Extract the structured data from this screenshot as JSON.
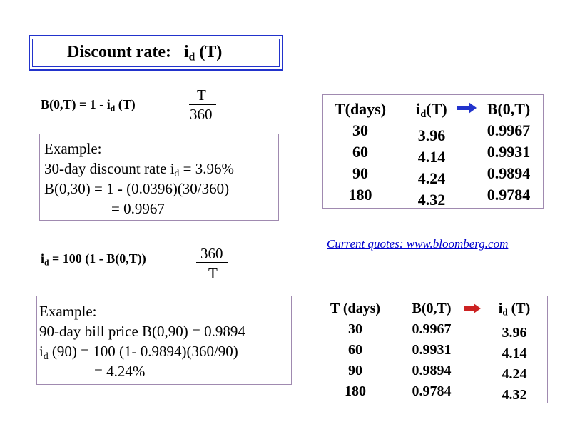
{
  "title": {
    "label": "Discount rate:",
    "var": "i",
    "sub": "d",
    "arg": " (T)"
  },
  "formula1": {
    "lhs": "B(0,T)  =  1 - ",
    "var": "i",
    "sub": "d",
    "tail": " (T)",
    "numerator": "T",
    "denominator": "360"
  },
  "example1": {
    "line1": "Example:",
    "line2_pre": "30-day discount rate i",
    "line2_sub": "d",
    "line2_post": " = 3.96%",
    "line3": "B(0,30)  =   1 - (0.0396)(30/360)",
    "line4": "=   0.9967"
  },
  "formula2": {
    "var": "i",
    "sub": "d",
    "rhs": " =  100 (1 - B(0,T))",
    "numerator": "360",
    "denominator": "T"
  },
  "example2": {
    "line1": "Example:",
    "line2": "90-day bill price B(0,90) = 0.9894",
    "line3_var": "i",
    "line3_sub": "d",
    "line3_post": " (90)   =   100 (1- 0.9894)(360/90)",
    "line4": "=   4.24%"
  },
  "table1": {
    "header_t": "T(days)",
    "header_i_var": "i",
    "header_i_sub": "d",
    "header_i_post": "(T)",
    "header_b": "B(0,T)",
    "t": [
      "30",
      "60",
      "90",
      "180"
    ],
    "i": [
      "3.96",
      "4.14",
      "4.24",
      "4.32"
    ],
    "b": [
      "0.9967",
      "0.9931",
      "0.9894",
      "0.9784"
    ],
    "arrow_color": "#2233cc"
  },
  "quotes_link": "Current quotes: www.bloomberg.com",
  "table2": {
    "header_t": "T (days)",
    "header_b": "B(0,T)",
    "header_i_var": "i",
    "header_i_sub": "d",
    "header_i_post": " (T)",
    "t": [
      "30",
      "60",
      "90",
      "180"
    ],
    "b": [
      "0.9967",
      "0.9931",
      "0.9894",
      "0.9784"
    ],
    "i": [
      "3.96",
      "4.14",
      "4.24",
      "4.32"
    ],
    "arrow_color": "#cc2222"
  }
}
